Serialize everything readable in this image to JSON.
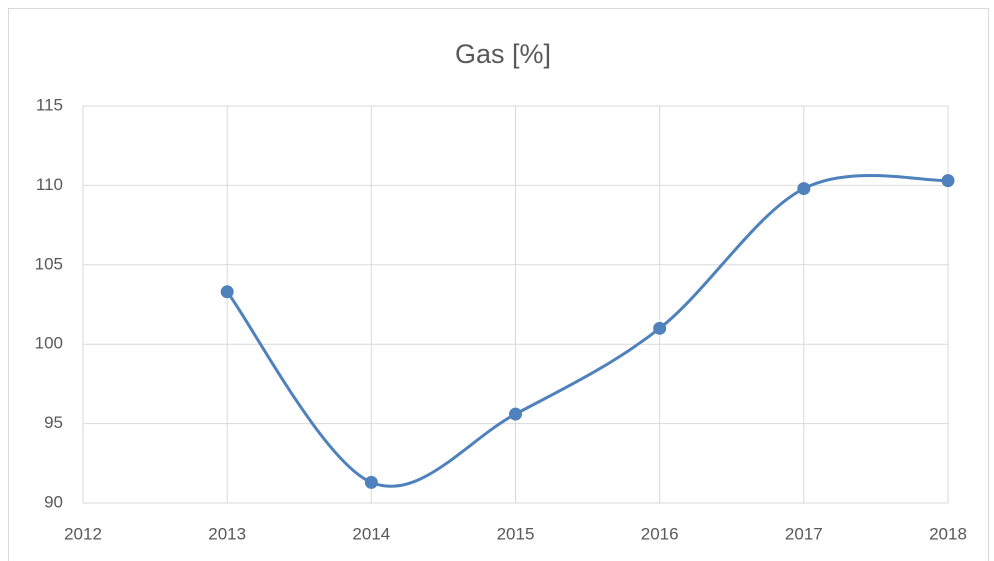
{
  "chart_data": {
    "type": "line",
    "title": "Gas [%]",
    "x": [
      2013,
      2014,
      2015,
      2016,
      2017,
      2018
    ],
    "series": [
      {
        "name": "Gas [%]",
        "color": "#4f81bd",
        "values": [
          103.3,
          91.3,
          95.6,
          101.0,
          109.8,
          110.3
        ]
      }
    ],
    "xlim": [
      2012,
      2018
    ],
    "xticks": [
      2012,
      2013,
      2014,
      2015,
      2016,
      2017,
      2018
    ],
    "ylim": [
      90,
      115
    ],
    "yticks": [
      90,
      95,
      100,
      105,
      110,
      115
    ],
    "grid": true,
    "smooth": true
  }
}
